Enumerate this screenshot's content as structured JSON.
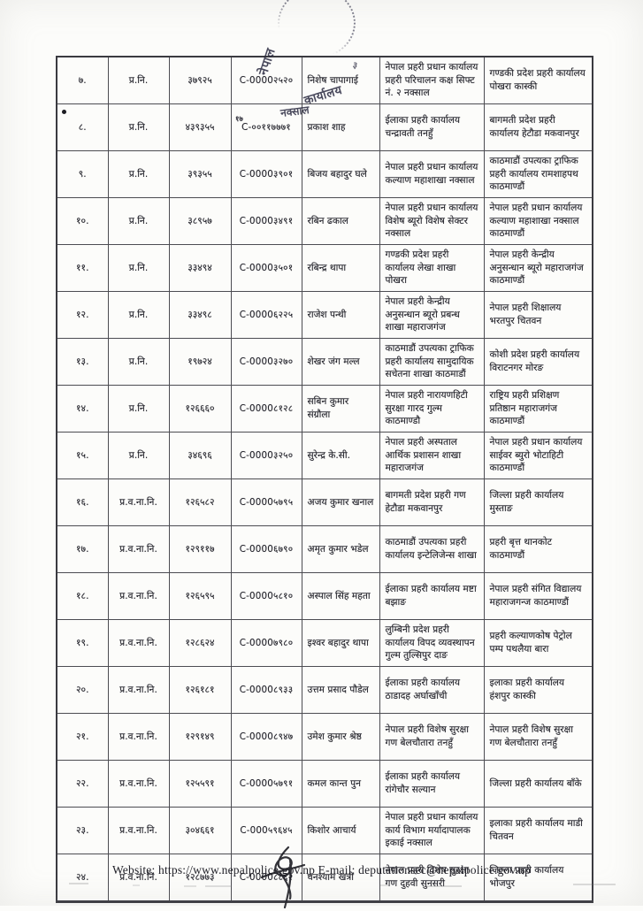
{
  "stamp": {
    "word1": "नेपाल",
    "word2": "कार्यालय",
    "word3": "नक्साल",
    "digit": "३"
  },
  "artifacts": {
    "superscript_mark": "१७"
  },
  "footer": {
    "text": "Website: https://www.nepalpolice.gov.np E-mail: deputationsec@nepalpolice.gov.np"
  },
  "table": {
    "rows": [
      {
        "sn": "७.",
        "rank": "प्र.नि.",
        "number": "३७९२५",
        "code": "C-0000२५२०",
        "name": "निशेष चापागाई",
        "office_from": "नेपाल प्रहरी प्रधान कार्यालय प्रहरी परिचालन कक्ष सिफ्ट नं. २ नक्साल",
        "office_to": "गण्डकी प्रदेश प्रहरी कार्यालय पोखरा कास्की"
      },
      {
        "sn": "८.",
        "rank": "प्र.नि.",
        "number": "४३९३५५",
        "code": "C-००११७७७१",
        "name": "प्रकाश शाह",
        "office_from": "ईलाका प्रहरी कार्यालय चन्द्रावती तनहुँ",
        "office_to": "बागमती प्रदेश प्रहरी कार्यालय हेटौडा मकवानपुर"
      },
      {
        "sn": "९.",
        "rank": "प्र.नि.",
        "number": "३९३५५",
        "code": "C-0000३९०१",
        "name": "बिजय बहादुर घले",
        "office_from": "नेपाल प्रहरी प्रधान कार्यालय कल्याण महाशाखा नक्साल",
        "office_to": "काठमाडौं उपत्यका ट्राफिक प्रहरी कार्यालय रामशाहपथ काठमाण्डौं"
      },
      {
        "sn": "१०.",
        "rank": "प्र.नि.",
        "number": "३८९५७",
        "code": "C-0000३४९१",
        "name": "रबिन ढकाल",
        "office_from": "नेपाल प्रहरी प्रधान कार्यालय विशेष ब्यूरो विशेष सेक्टर नक्साल",
        "office_to": "नेपाल प्रहरी प्रधान कार्यालय कल्याण महाशाखा नक्साल काठमाण्डौं"
      },
      {
        "sn": "११.",
        "rank": "प्र.नि.",
        "number": "३३४९४",
        "code": "C-0000३५०१",
        "name": "रबिन्द्र थापा",
        "office_from": "गण्डकी प्रदेश प्रहरी कार्यालय लेखा शाखा पोखरा",
        "office_to": "नेपाल प्रहरी केन्द्रीय अनुसन्धान ब्यूरो महाराजगंज काठमाण्डौं"
      },
      {
        "sn": "१२.",
        "rank": "प्र.नि.",
        "number": "३३४९८",
        "code": "C-0000६२२५",
        "name": "राजेश पन्थी",
        "office_from": "नेपाल प्रहरी केन्द्रीय अनुसन्धान ब्यूरो प्रबन्ध शाखा महाराजगंज",
        "office_to": "नेपाल प्रहरी शिक्षालय भरतपुर चितवन"
      },
      {
        "sn": "१३.",
        "rank": "प्र.नि.",
        "number": "१९७२४",
        "code": "C-0000३२७०",
        "name": "शेखर जंग मल्ल",
        "office_from": "काठमाडौं उपत्यका ट्राफिक प्रहरी कार्यालय सामुदायिक सचेतना शाखा काठमाडौं",
        "office_to": "कोशी प्रदेश प्रहरी कार्यालय विराटनगर मोरङ"
      },
      {
        "sn": "१४.",
        "rank": "प्र.नि.",
        "number": "१२६६६०",
        "code": "C-0000८१२८",
        "name": "सबिन कुमार संग्रौला",
        "office_from": "नेपाल प्रहरी नारायणहिटी सुरक्षा गारद गुल्म काठमाण्डौ",
        "office_to": "राष्ट्रिय प्रहरी प्रशिक्षण प्रतिष्ठान महाराजगंज काठमाण्डौं"
      },
      {
        "sn": "१५.",
        "rank": "प्र.नि.",
        "number": "३४६९६",
        "code": "C-0000३२५०",
        "name": "सुरेन्द्र के.सी.",
        "office_from": "नेपाल प्रहरी अस्पताल आर्थिक प्रशासन शाखा महाराजगंज",
        "office_to": "नेपाल प्रहरी प्रधान कार्यालय साईवर ब्युरो भोटाहिटी काठमाण्डौं"
      },
      {
        "sn": "१६.",
        "rank": "प्र.व.ना.नि.",
        "number": "१२६५८२",
        "code": "C-0000५७९५",
        "name": "अजय कुमार खनाल",
        "office_from": "बागमती प्रदेश प्रहरी गण हेटौडा मकवानपुर",
        "office_to": "जिल्ला प्रहरी कार्यालय मुस्ताङ"
      },
      {
        "sn": "१७.",
        "rank": "प्र.व.ना.नि.",
        "number": "१२९११७",
        "code": "C-0000६७९०",
        "name": "अमृत कुमार भडेल",
        "office_from": "काठमाडौं उपत्यका प्रहरी कार्यालय इन्टेलिजेन्स शाखा",
        "office_to": "प्रहरी बृत्त थानकोट काठमाण्डौं"
      },
      {
        "sn": "१८.",
        "rank": "प्र.व.ना.नि.",
        "number": "१२६५९५",
        "code": "C-0000५८१०",
        "name": "अस्पाल सिंह महता",
        "office_from": "ईलाका प्रहरी कार्यालय मष्टा बझाङ",
        "office_to": "नेपाल प्रहरी संगित विद्यालय महाराजगन्ज काठमाण्डौं"
      },
      {
        "sn": "१९.",
        "rank": "प्र.व.ना.नि.",
        "number": "१२८६२४",
        "code": "C-0000७९८०",
        "name": "इश्वर बहादुर थापा",
        "office_from": "लुम्बिनी प्रदेश प्रहरी कार्यालय विपद व्यवस्थापन गुल्म तुल्सिपुर दाङ",
        "office_to": "प्रहरी कल्याणकोष पेट्रोल पम्प पथलैया बारा"
      },
      {
        "sn": "२०.",
        "rank": "प्र.व.ना.नि.",
        "number": "१२६१८१",
        "code": "C-0000८९३३",
        "name": "उत्तम प्रसाद पौडेल",
        "office_from": "ईलाका प्रहरी कार्यालय ठाडादह अर्घाखाँची",
        "office_to": "इलाका प्रहरी कार्यालय हंशपुर कास्की"
      },
      {
        "sn": "२१.",
        "rank": "प्र.व.ना.नि.",
        "number": "१२९१४९",
        "code": "C-0000८९४७",
        "name": "उमेश कुमार श्रेष्ठ",
        "office_from": "नेपाल प्रहरी विशेष सुरक्षा गण बेलचौतारा तनहुँ",
        "office_to": "नेपाल प्रहरी विशेष सुरक्षा गण बेलचौतारा तनहुँ"
      },
      {
        "sn": "२२.",
        "rank": "प्र.व.ना.नि.",
        "number": "१२५५९१",
        "code": "C-0000५७९१",
        "name": "कमल कान्त पुन",
        "office_from": "ईलाका प्रहरी कार्यालय रांगेचौर सल्यान",
        "office_to": "जिल्ला प्रहरी कार्यालय बाँके"
      },
      {
        "sn": "२३.",
        "rank": "प्र.व.ना.नि.",
        "number": "३०४६६१",
        "code": "C-000५९६४५",
        "name": "किशोर आचार्य",
        "office_from": "नेपाल प्रहरी प्रधान कार्यालय कार्य विभाग मर्यादापालक इकाई नक्साल",
        "office_to": "इलाका प्रहरी कार्यालय माडी चितवन"
      },
      {
        "sn": "२४.",
        "rank": "प्र.व.ना.नि.",
        "number": "१२८७७३",
        "code": "C-0000८८६२",
        "name": "घनश्याम खत्री",
        "office_from": "नेपाल प्रहरी विशेष सुरक्षा गण दुहवी सुनसरी",
        "office_to": "जिल्ला प्रहरी कार्यालय भोजपुर"
      }
    ]
  }
}
